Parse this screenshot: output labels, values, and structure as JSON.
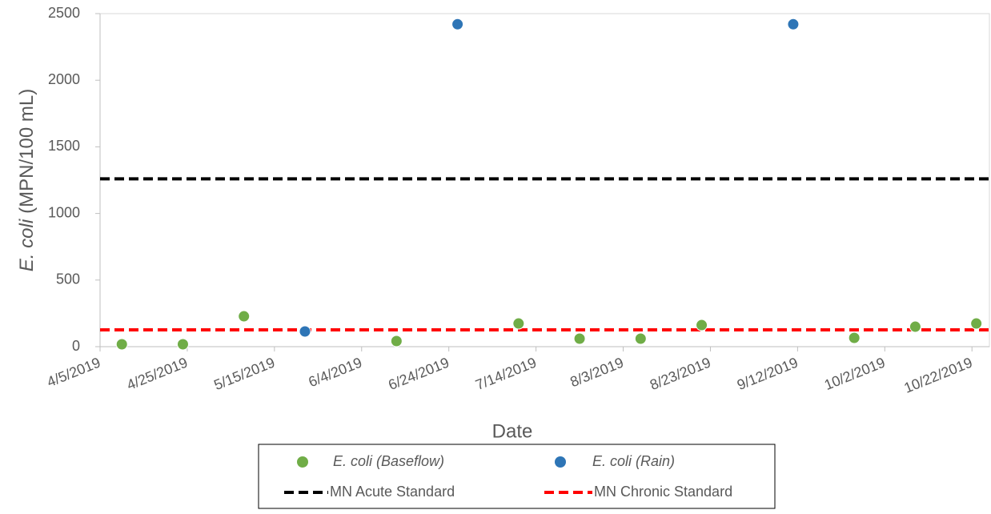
{
  "chart_data": {
    "type": "scatter",
    "xlabel": "Date",
    "ylabel": [
      "E. coli",
      "(MPN/100 mL)"
    ],
    "xlim": [
      "2019-04-05",
      "2019-10-26"
    ],
    "xticks": [
      {
        "value": "2019-04-05",
        "label": "4/5/2019"
      },
      {
        "value": "2019-04-25",
        "label": "4/25/2019"
      },
      {
        "value": "2019-05-15",
        "label": "5/15/2019"
      },
      {
        "value": "2019-06-04",
        "label": "6/4/2019"
      },
      {
        "value": "2019-06-24",
        "label": "6/24/2019"
      },
      {
        "value": "2019-07-14",
        "label": "7/14/2019"
      },
      {
        "value": "2019-08-03",
        "label": "8/3/2019"
      },
      {
        "value": "2019-08-23",
        "label": "8/23/2019"
      },
      {
        "value": "2019-09-12",
        "label": "9/12/2019"
      },
      {
        "value": "2019-10-02",
        "label": "10/2/2019"
      },
      {
        "value": "2019-10-22",
        "label": "10/22/2019"
      }
    ],
    "ylim": [
      0,
      2500
    ],
    "yticks": [
      0,
      500,
      1000,
      1500,
      2000,
      2500
    ],
    "series": [
      {
        "name": "E. coli (Baseflow)",
        "italic": true,
        "color": "#70ad47",
        "x": [
          "2019-04-10",
          "2019-04-24",
          "2019-05-08",
          "2019-06-12",
          "2019-07-10",
          "2019-07-24",
          "2019-08-07",
          "2019-08-21",
          "2019-09-25",
          "2019-10-09",
          "2019-10-23"
        ],
        "values": [
          18,
          18,
          228,
          42,
          174,
          60,
          60,
          162,
          66,
          150,
          174
        ]
      },
      {
        "name": "E. coli (Rain)",
        "italic": true,
        "color": "#2e75b6",
        "x": [
          "2019-05-22",
          "2019-06-26",
          "2019-09-11"
        ],
        "values": [
          114,
          2420,
          2420
        ]
      }
    ],
    "reference_lines": [
      {
        "name": "MN Acute Standard",
        "color": "#000000",
        "value": 1260
      },
      {
        "name": "MN Chronic Standard",
        "color": "#ff0000",
        "value": 126
      }
    ]
  }
}
